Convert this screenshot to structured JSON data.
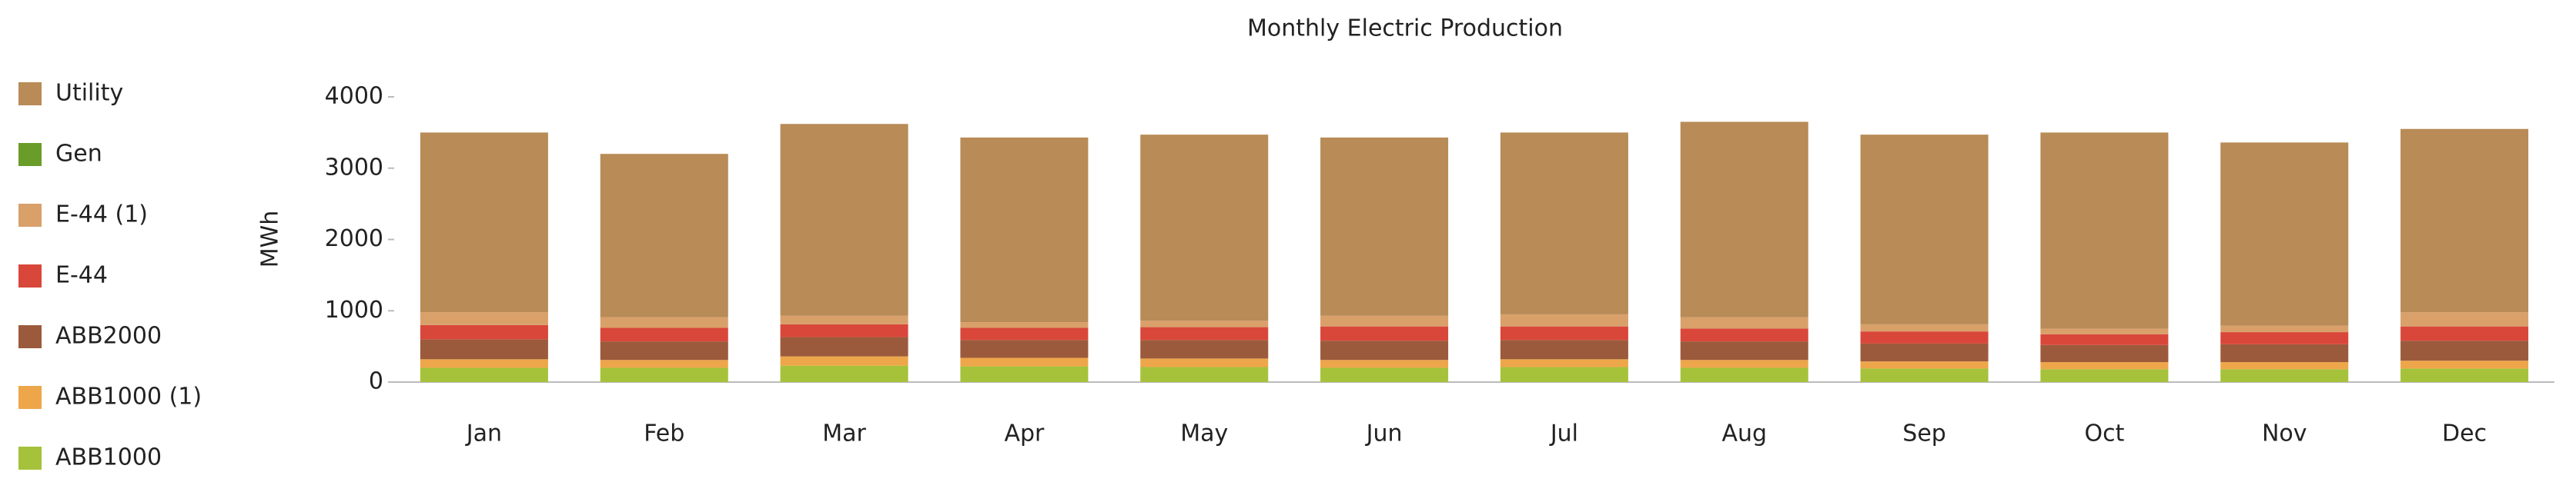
{
  "chart_data": {
    "type": "stacked_bar",
    "title": "Monthly Electric Production",
    "ylabel": "MWh",
    "categories": [
      "Jan",
      "Feb",
      "Mar",
      "Apr",
      "May",
      "Jun",
      "Jul",
      "Aug",
      "Sep",
      "Oct",
      "Nov",
      "Dec"
    ],
    "series": [
      {
        "name": "Utility",
        "color": "#b88b57",
        "values": [
          2520,
          2290,
          2690,
          2590,
          2610,
          2500,
          2550,
          2740,
          2660,
          2750,
          2570,
          2570
        ]
      },
      {
        "name": "Gen",
        "color": "#6a9c2a",
        "values": [
          0,
          0,
          0,
          0,
          0,
          0,
          0,
          0,
          0,
          0,
          0,
          0
        ]
      },
      {
        "name": "E-44 (1)",
        "color": "#d9a06a",
        "values": [
          180,
          150,
          120,
          80,
          90,
          150,
          170,
          160,
          100,
          80,
          90,
          200
        ]
      },
      {
        "name": "E-44",
        "color": "#d9473a",
        "values": [
          200,
          190,
          180,
          170,
          180,
          200,
          190,
          180,
          170,
          150,
          170,
          200
        ]
      },
      {
        "name": "ABB2000",
        "color": "#9c5a3c",
        "values": [
          280,
          260,
          270,
          250,
          260,
          270,
          270,
          260,
          250,
          240,
          250,
          280
        ]
      },
      {
        "name": "ABB1000 (1)",
        "color": "#eea64a",
        "values": [
          120,
          110,
          130,
          120,
          120,
          110,
          110,
          110,
          100,
          100,
          100,
          110
        ]
      },
      {
        "name": "ABB1000",
        "color": "#a5c23a",
        "values": [
          200,
          200,
          230,
          220,
          210,
          200,
          210,
          200,
          190,
          180,
          180,
          190
        ]
      }
    ],
    "ylim": [
      0,
      4000
    ],
    "yticks": [
      0,
      1000,
      2000,
      3000,
      4000
    ],
    "grid": false,
    "legend": "left"
  }
}
